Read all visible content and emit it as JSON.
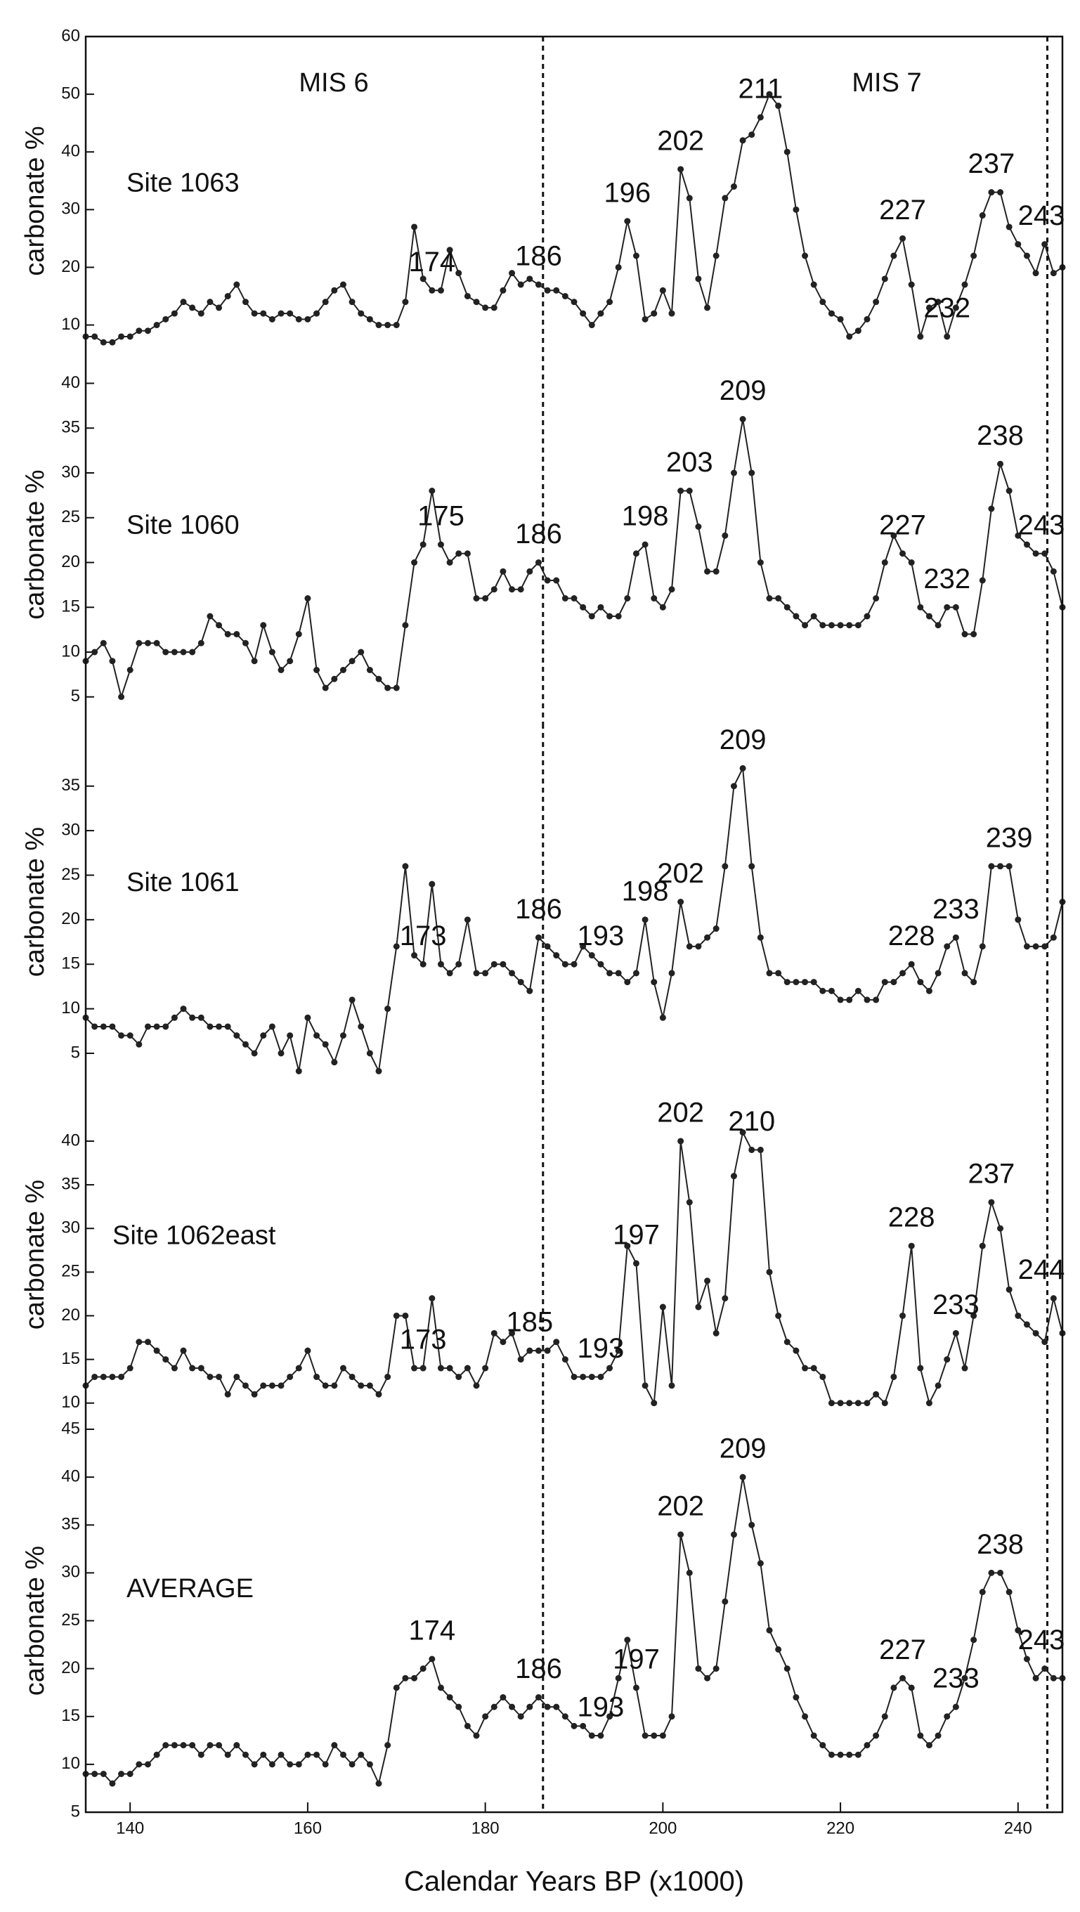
{
  "chart_data": [
    {
      "type": "line",
      "title": "Site 1063",
      "ylabel": "carbonate %",
      "annotations": [
        "MIS 6",
        "MIS 7"
      ],
      "xlim": [
        135,
        245
      ],
      "ylim": [
        3,
        60
      ],
      "yticks": [
        10,
        20,
        30,
        40,
        50,
        60
      ],
      "vlines": [
        186.5,
        243.3
      ],
      "color": "#222222",
      "peaks": [
        174,
        186,
        196,
        202,
        211,
        227,
        232,
        237,
        243
      ],
      "x": [
        135,
        136,
        137,
        138,
        139,
        140,
        141,
        142,
        143,
        144,
        145,
        146,
        147,
        148,
        149,
        150,
        151,
        152,
        153,
        154,
        155,
        156,
        157,
        158,
        159,
        160,
        161,
        162,
        163,
        164,
        165,
        166,
        167,
        168,
        169,
        170,
        171,
        172,
        173,
        174,
        175,
        176,
        177,
        178,
        179,
        180,
        181,
        182,
        183,
        184,
        185,
        186,
        187,
        188,
        189,
        190,
        191,
        192,
        193,
        194,
        195,
        196,
        197,
        198,
        199,
        200,
        201,
        202,
        203,
        204,
        205,
        206,
        207,
        208,
        209,
        210,
        211,
        212,
        213,
        214,
        215,
        216,
        217,
        218,
        219,
        220,
        221,
        222,
        223,
        224,
        225,
        226,
        227,
        228,
        229,
        230,
        231,
        232,
        233,
        234,
        235,
        236,
        237,
        238,
        239,
        240,
        241,
        242,
        243,
        244,
        245
      ],
      "values": [
        8,
        8,
        7,
        7,
        8,
        8,
        9,
        9,
        10,
        11,
        12,
        14,
        13,
        12,
        14,
        13,
        15,
        17,
        14,
        12,
        12,
        11,
        12,
        12,
        11,
        11,
        12,
        14,
        16,
        17,
        14,
        12,
        11,
        10,
        10,
        10,
        14,
        27,
        18,
        16,
        16,
        23,
        19,
        15,
        14,
        13,
        13,
        16,
        19,
        17,
        18,
        17,
        16,
        16,
        15,
        14,
        12,
        10,
        12,
        14,
        20,
        28,
        22,
        11,
        12,
        16,
        12,
        37,
        32,
        18,
        13,
        22,
        32,
        34,
        42,
        43,
        46,
        50,
        48,
        40,
        30,
        22,
        17,
        14,
        12,
        11,
        8,
        9,
        11,
        14,
        18,
        22,
        25,
        17,
        8,
        13,
        14,
        8,
        13,
        17,
        22,
        29,
        33,
        33,
        27,
        24,
        22,
        19,
        24,
        19,
        20
      ]
    },
    {
      "type": "line",
      "title": "Site 1060",
      "ylabel": "carbonate %",
      "xlim": [
        135,
        245
      ],
      "ylim": [
        2,
        42
      ],
      "yticks": [
        5,
        10,
        15,
        20,
        25,
        30,
        35,
        40
      ],
      "vlines": [
        186.5,
        243.3
      ],
      "color": "#222222",
      "peaks": [
        175,
        186,
        198,
        203,
        209,
        227,
        232,
        238,
        243
      ],
      "x": [
        135,
        136,
        137,
        138,
        139,
        140,
        141,
        142,
        143,
        144,
        145,
        146,
        147,
        148,
        149,
        150,
        151,
        152,
        153,
        154,
        155,
        156,
        157,
        158,
        159,
        160,
        161,
        162,
        163,
        164,
        165,
        166,
        167,
        168,
        169,
        170,
        171,
        172,
        173,
        174,
        175,
        176,
        177,
        178,
        179,
        180,
        181,
        182,
        183,
        184,
        185,
        186,
        187,
        188,
        189,
        190,
        191,
        192,
        193,
        194,
        195,
        196,
        197,
        198,
        199,
        200,
        201,
        202,
        203,
        204,
        205,
        206,
        207,
        208,
        209,
        210,
        211,
        212,
        213,
        214,
        215,
        216,
        217,
        218,
        219,
        220,
        221,
        222,
        223,
        224,
        225,
        226,
        227,
        228,
        229,
        230,
        231,
        232,
        233,
        234,
        235,
        236,
        237,
        238,
        239,
        240,
        241,
        242,
        243,
        244,
        245
      ],
      "values": [
        9,
        10,
        11,
        9,
        5,
        8,
        11,
        11,
        11,
        10,
        10,
        10,
        10,
        11,
        14,
        13,
        12,
        12,
        11,
        9,
        13,
        10,
        8,
        9,
        12,
        16,
        8,
        6,
        7,
        8,
        9,
        10,
        8,
        7,
        6,
        6,
        13,
        20,
        22,
        28,
        22,
        20,
        21,
        21,
        16,
        16,
        17,
        19,
        17,
        17,
        19,
        20,
        18,
        18,
        16,
        16,
        15,
        14,
        15,
        14,
        14,
        16,
        21,
        22,
        16,
        15,
        17,
        28,
        28,
        24,
        19,
        19,
        23,
        30,
        36,
        30,
        20,
        16,
        16,
        15,
        14,
        13,
        14,
        13,
        13,
        13,
        13,
        13,
        14,
        16,
        20,
        23,
        21,
        20,
        15,
        14,
        13,
        15,
        15,
        12,
        12,
        18,
        26,
        31,
        28,
        23,
        22,
        21,
        21,
        19,
        15
      ]
    },
    {
      "type": "line",
      "title": "Site 1061",
      "ylabel": "carbonate %",
      "xlim": [
        135,
        245
      ],
      "ylim": [
        2,
        42
      ],
      "yticks": [
        5,
        10,
        15,
        20,
        25,
        30,
        35
      ],
      "vlines": [
        186.5,
        243.3
      ],
      "color": "#222222",
      "peaks": [
        173,
        186,
        193,
        198,
        202,
        209,
        228,
        233,
        239
      ],
      "x": [
        135,
        136,
        137,
        138,
        139,
        140,
        141,
        142,
        143,
        144,
        145,
        146,
        147,
        148,
        149,
        150,
        151,
        152,
        153,
        154,
        155,
        156,
        157,
        158,
        159,
        160,
        161,
        162,
        163,
        164,
        165,
        166,
        167,
        168,
        169,
        170,
        171,
        172,
        173,
        174,
        175,
        176,
        177,
        178,
        179,
        180,
        181,
        182,
        183,
        184,
        185,
        186,
        187,
        188,
        189,
        190,
        191,
        192,
        193,
        194,
        195,
        196,
        197,
        198,
        199,
        200,
        201,
        202,
        203,
        204,
        205,
        206,
        207,
        208,
        209,
        210,
        211,
        212,
        213,
        214,
        215,
        216,
        217,
        218,
        219,
        220,
        221,
        222,
        223,
        224,
        225,
        226,
        227,
        228,
        229,
        230,
        231,
        232,
        233,
        234,
        235,
        236,
        237,
        238,
        239,
        240,
        241,
        242,
        243,
        244,
        245
      ],
      "values": [
        9,
        8,
        8,
        8,
        7,
        7,
        6,
        8,
        8,
        8,
        9,
        10,
        9,
        9,
        8,
        8,
        8,
        7,
        6,
        5,
        7,
        8,
        5,
        7,
        3,
        9,
        7,
        6,
        4,
        7,
        11,
        8,
        5,
        3,
        10,
        17,
        26,
        16,
        15,
        24,
        15,
        14,
        15,
        20,
        14,
        14,
        15,
        15,
        14,
        13,
        12,
        18,
        17,
        16,
        15,
        15,
        17,
        16,
        15,
        14,
        14,
        13,
        14,
        20,
        13,
        9,
        14,
        22,
        17,
        17,
        18,
        19,
        26,
        35,
        37,
        26,
        18,
        14,
        14,
        13,
        13,
        13,
        13,
        12,
        12,
        11,
        11,
        12,
        11,
        11,
        13,
        13,
        14,
        15,
        13,
        12,
        14,
        17,
        18,
        14,
        13,
        17,
        26,
        26,
        26,
        20,
        17,
        17,
        17,
        18,
        22
      ]
    },
    {
      "type": "line",
      "title": "Site 1062east",
      "ylabel": "carbonate %",
      "xlim": [
        135,
        245
      ],
      "ylim": [
        7,
        47
      ],
      "yticks": [
        10,
        15,
        20,
        25,
        30,
        35,
        40
      ],
      "vlines": [
        186.5,
        243.3
      ],
      "color": "#222222",
      "peaks": [
        173,
        185,
        193,
        197,
        202,
        210,
        228,
        233,
        237,
        244
      ],
      "x": [
        135,
        136,
        137,
        138,
        139,
        140,
        141,
        142,
        143,
        144,
        145,
        146,
        147,
        148,
        149,
        150,
        151,
        152,
        153,
        154,
        155,
        156,
        157,
        158,
        159,
        160,
        161,
        162,
        163,
        164,
        165,
        166,
        167,
        168,
        169,
        170,
        171,
        172,
        173,
        174,
        175,
        176,
        177,
        178,
        179,
        180,
        181,
        182,
        183,
        184,
        185,
        186,
        187,
        188,
        189,
        190,
        191,
        192,
        193,
        194,
        195,
        196,
        197,
        198,
        199,
        200,
        201,
        202,
        203,
        204,
        205,
        206,
        207,
        208,
        209,
        210,
        211,
        212,
        213,
        214,
        215,
        216,
        217,
        218,
        219,
        220,
        221,
        222,
        223,
        224,
        225,
        226,
        227,
        228,
        229,
        230,
        231,
        232,
        233,
        234,
        235,
        236,
        237,
        238,
        239,
        240,
        241,
        242,
        243,
        244,
        245
      ],
      "values": [
        12,
        13,
        13,
        13,
        13,
        14,
        17,
        17,
        16,
        15,
        14,
        16,
        14,
        14,
        13,
        13,
        11,
        13,
        12,
        11,
        12,
        12,
        12,
        13,
        14,
        16,
        13,
        12,
        12,
        14,
        13,
        12,
        12,
        11,
        13,
        20,
        20,
        14,
        14,
        22,
        14,
        14,
        13,
        14,
        12,
        14,
        18,
        17,
        18,
        15,
        16,
        16,
        16,
        17,
        15,
        13,
        13,
        13,
        13,
        14,
        16,
        28,
        26,
        12,
        10,
        21,
        12,
        40,
        33,
        21,
        24,
        18,
        22,
        36,
        41,
        39,
        39,
        25,
        20,
        17,
        16,
        14,
        14,
        13,
        10,
        10,
        10,
        10,
        10,
        11,
        10,
        13,
        20,
        28,
        14,
        10,
        12,
        15,
        18,
        14,
        20,
        28,
        33,
        30,
        23,
        20,
        19,
        18,
        17,
        22,
        18
      ]
    },
    {
      "type": "line",
      "title": "AVERAGE",
      "ylabel": "carbonate %",
      "xlabel": "Calendar Years BP (x1000)",
      "xlim": [
        135,
        245
      ],
      "ylim": [
        5,
        45
      ],
      "yticks": [
        5,
        10,
        15,
        20,
        25,
        30,
        35,
        40,
        45
      ],
      "xticks": [
        140,
        160,
        180,
        200,
        220,
        240
      ],
      "vlines": [
        186.5,
        243.3
      ],
      "color": "#222222",
      "peaks": [
        174,
        186,
        193,
        197,
        202,
        209,
        227,
        233,
        238,
        243
      ],
      "x": [
        135,
        136,
        137,
        138,
        139,
        140,
        141,
        142,
        143,
        144,
        145,
        146,
        147,
        148,
        149,
        150,
        151,
        152,
        153,
        154,
        155,
        156,
        157,
        158,
        159,
        160,
        161,
        162,
        163,
        164,
        165,
        166,
        167,
        168,
        169,
        170,
        171,
        172,
        173,
        174,
        175,
        176,
        177,
        178,
        179,
        180,
        181,
        182,
        183,
        184,
        185,
        186,
        187,
        188,
        189,
        190,
        191,
        192,
        193,
        194,
        195,
        196,
        197,
        198,
        199,
        200,
        201,
        202,
        203,
        204,
        205,
        206,
        207,
        208,
        209,
        210,
        211,
        212,
        213,
        214,
        215,
        216,
        217,
        218,
        219,
        220,
        221,
        222,
        223,
        224,
        225,
        226,
        227,
        228,
        229,
        230,
        231,
        232,
        233,
        234,
        235,
        236,
        237,
        238,
        239,
        240,
        241,
        242,
        243,
        244,
        245
      ],
      "values": [
        9,
        9,
        9,
        8,
        9,
        9,
        10,
        10,
        11,
        12,
        12,
        12,
        12,
        11,
        12,
        12,
        11,
        12,
        11,
        10,
        11,
        10,
        11,
        10,
        10,
        11,
        11,
        10,
        12,
        11,
        10,
        11,
        10,
        8,
        12,
        18,
        19,
        19,
        20,
        21,
        18,
        17,
        16,
        14,
        13,
        15,
        16,
        17,
        16,
        15,
        16,
        17,
        16,
        16,
        15,
        14,
        14,
        13,
        13,
        15,
        19,
        23,
        18,
        13,
        13,
        13,
        15,
        34,
        30,
        20,
        19,
        20,
        27,
        34,
        40,
        35,
        31,
        24,
        22,
        20,
        17,
        15,
        13,
        12,
        11,
        11,
        11,
        11,
        12,
        13,
        15,
        18,
        19,
        18,
        13,
        12,
        13,
        15,
        16,
        19,
        23,
        28,
        30,
        30,
        28,
        24,
        21,
        19,
        20,
        19,
        19
      ]
    }
  ]
}
